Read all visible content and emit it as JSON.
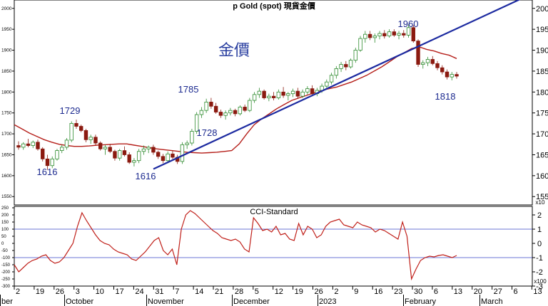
{
  "chart_data": [
    {
      "type": "candlestick",
      "title": "p Gold (spot) 現貨金價",
      "watermark": "金價",
      "right_axis_multiplier": "x10",
      "left_ticks": [
        1550,
        1600,
        1650,
        1700,
        1750,
        1800,
        1850,
        1900,
        1950,
        2000
      ],
      "right_ticks": [
        155,
        160,
        165,
        170,
        175,
        180,
        185,
        190,
        195,
        200
      ],
      "ylim": [
        1530,
        2020
      ],
      "x_ticks": [
        "2",
        "19",
        "26",
        "3",
        "10",
        "17",
        "24",
        "31",
        "7",
        "14",
        "21",
        "28",
        "5",
        "12",
        "19",
        "26",
        "2",
        "9",
        "16",
        "23",
        "30",
        "6",
        "13",
        "20",
        "27",
        "6",
        "13"
      ],
      "months": [
        "ber",
        "October",
        "November",
        "December",
        "2023",
        "February",
        "March"
      ],
      "annotations": [
        "1729",
        "1616",
        "1616",
        "1785",
        "1728",
        "1960",
        "1818"
      ],
      "series": [
        {
          "name": "candles",
          "ohlc": [
            [
              1672,
              1682,
              1662,
              1668
            ],
            [
              1668,
              1680,
              1662,
              1676
            ],
            [
              1676,
              1688,
              1668,
              1672
            ],
            [
              1672,
              1684,
              1666,
              1680
            ],
            [
              1680,
              1686,
              1660,
              1664
            ],
            [
              1664,
              1668,
              1634,
              1640
            ],
            [
              1640,
              1650,
              1614,
              1624
            ],
            [
              1624,
              1646,
              1618,
              1640
            ],
            [
              1640,
              1664,
              1636,
              1660
            ],
            [
              1660,
              1674,
              1654,
              1668
            ],
            [
              1668,
              1690,
              1662,
              1685
            ],
            [
              1685,
              1730,
              1680,
              1725
            ],
            [
              1725,
              1734,
              1712,
              1718
            ],
            [
              1718,
              1722,
              1704,
              1708
            ],
            [
              1708,
              1712,
              1680,
              1686
            ],
            [
              1686,
              1698,
              1676,
              1692
            ],
            [
              1692,
              1698,
              1672,
              1678
            ],
            [
              1678,
              1682,
              1660,
              1664
            ],
            [
              1664,
              1674,
              1650,
              1668
            ],
            [
              1668,
              1676,
              1654,
              1658
            ],
            [
              1658,
              1662,
              1636,
              1642
            ],
            [
              1642,
              1664,
              1636,
              1660
            ],
            [
              1660,
              1670,
              1646,
              1650
            ],
            [
              1650,
              1656,
              1628,
              1632
            ],
            [
              1632,
              1642,
              1622,
              1636
            ],
            [
              1636,
              1664,
              1630,
              1658
            ],
            [
              1658,
              1672,
              1650,
              1664
            ],
            [
              1664,
              1672,
              1654,
              1668
            ],
            [
              1668,
              1674,
              1650,
              1656
            ],
            [
              1656,
              1660,
              1640,
              1646
            ],
            [
              1646,
              1652,
              1630,
              1636
            ],
            [
              1636,
              1658,
              1630,
              1652
            ],
            [
              1652,
              1660,
              1640,
              1644
            ],
            [
              1644,
              1650,
              1628,
              1634
            ],
            [
              1634,
              1680,
              1628,
              1674
            ],
            [
              1674,
              1684,
              1664,
              1678
            ],
            [
              1678,
              1712,
              1672,
              1706
            ],
            [
              1706,
              1752,
              1700,
              1746
            ],
            [
              1746,
              1764,
              1738,
              1756
            ],
            [
              1756,
              1784,
              1750,
              1776
            ],
            [
              1776,
              1786,
              1760,
              1766
            ],
            [
              1766,
              1774,
              1748,
              1752
            ],
            [
              1752,
              1758,
              1738,
              1744
            ],
            [
              1744,
              1756,
              1734,
              1750
            ],
            [
              1750,
              1762,
              1744,
              1756
            ],
            [
              1756,
              1760,
              1742,
              1748
            ],
            [
              1748,
              1768,
              1744,
              1764
            ],
            [
              1764,
              1770,
              1752,
              1756
            ],
            [
              1756,
              1786,
              1752,
              1780
            ],
            [
              1780,
              1800,
              1774,
              1794
            ],
            [
              1794,
              1810,
              1786,
              1802
            ],
            [
              1802,
              1806,
              1782,
              1786
            ],
            [
              1786,
              1796,
              1778,
              1790
            ],
            [
              1790,
              1800,
              1780,
              1786
            ],
            [
              1786,
              1806,
              1782,
              1800
            ],
            [
              1800,
              1812,
              1786,
              1792
            ],
            [
              1792,
              1800,
              1780,
              1796
            ],
            [
              1796,
              1808,
              1788,
              1802
            ],
            [
              1802,
              1810,
              1784,
              1790
            ],
            [
              1790,
              1806,
              1786,
              1800
            ],
            [
              1800,
              1814,
              1794,
              1808
            ],
            [
              1808,
              1816,
              1792,
              1796
            ],
            [
              1796,
              1810,
              1790,
              1804
            ],
            [
              1804,
              1820,
              1798,
              1814
            ],
            [
              1814,
              1830,
              1810,
              1824
            ],
            [
              1824,
              1846,
              1818,
              1840
            ],
            [
              1840,
              1862,
              1832,
              1856
            ],
            [
              1856,
              1872,
              1848,
              1866
            ],
            [
              1866,
              1874,
              1852,
              1860
            ],
            [
              1860,
              1880,
              1856,
              1876
            ],
            [
              1876,
              1906,
              1870,
              1900
            ],
            [
              1900,
              1934,
              1896,
              1928
            ],
            [
              1928,
              1946,
              1918,
              1938
            ],
            [
              1938,
              1946,
              1924,
              1930
            ],
            [
              1930,
              1940,
              1918,
              1934
            ],
            [
              1934,
              1946,
              1926,
              1940
            ],
            [
              1940,
              1948,
              1928,
              1934
            ],
            [
              1934,
              1950,
              1930,
              1944
            ],
            [
              1944,
              1950,
              1932,
              1936
            ],
            [
              1936,
              1946,
              1926,
              1940
            ],
            [
              1940,
              1948,
              1930,
              1936
            ],
            [
              1936,
              1962,
              1930,
              1954
            ],
            [
              1954,
              1960,
              1918,
              1922
            ],
            [
              1922,
              1926,
              1860,
              1866
            ],
            [
              1866,
              1876,
              1856,
              1870
            ],
            [
              1870,
              1884,
              1862,
              1878
            ],
            [
              1878,
              1886,
              1864,
              1868
            ],
            [
              1868,
              1874,
              1852,
              1858
            ],
            [
              1858,
              1864,
              1842,
              1848
            ],
            [
              1848,
              1854,
              1830,
              1836
            ],
            [
              1836,
              1848,
              1828,
              1842
            ],
            [
              1842,
              1848,
              1832,
              1838
            ]
          ]
        },
        {
          "name": "moving-average",
          "values": [
            1722,
            1712,
            1702,
            1694,
            1686,
            1680,
            1675,
            1672,
            1670,
            1670,
            1671,
            1673,
            1674,
            1675,
            1676,
            1676,
            1673,
            1670,
            1667,
            1664,
            1662,
            1660,
            1658,
            1656,
            1655,
            1654,
            1655,
            1656,
            1658,
            1660,
            1676,
            1700,
            1722,
            1736,
            1748,
            1760,
            1770,
            1780,
            1786,
            1792,
            1798,
            1804,
            1808,
            1812,
            1818,
            1824,
            1832,
            1840,
            1850,
            1860,
            1872,
            1884,
            1894,
            1904,
            1908,
            1902,
            1898,
            1892,
            1888,
            1880
          ]
        },
        {
          "name": "trendline",
          "points": [
            [
              "Nov 3",
              1616
            ],
            [
              "Feb 2",
              1920
            ]
          ]
        }
      ]
    },
    {
      "type": "line",
      "title": "CCI-Standard",
      "right_axis_multiplier": "x100",
      "left_ticks": [
        -300,
        -250,
        -200,
        -150,
        -100,
        -50,
        0,
        50,
        100,
        150,
        200,
        250
      ],
      "right_ticks": [
        -3,
        -2,
        -1,
        0,
        1,
        2
      ],
      "ylim": [
        -300,
        260
      ],
      "reference_lines": [
        100,
        -100
      ],
      "series": [
        {
          "name": "cci",
          "values": [
            -150,
            -200,
            -170,
            -140,
            -120,
            -110,
            -90,
            -80,
            -120,
            -140,
            -130,
            -100,
            -50,
            0,
            120,
            215,
            160,
            110,
            60,
            20,
            0,
            -10,
            -40,
            -60,
            -70,
            -80,
            -110,
            -120,
            -90,
            -60,
            -20,
            20,
            40,
            -50,
            -80,
            -40,
            -150,
            100,
            200,
            230,
            210,
            180,
            150,
            120,
            90,
            70,
            40,
            30,
            20,
            30,
            10,
            -40,
            -60,
            180,
            140,
            90,
            100,
            80,
            120,
            60,
            70,
            30,
            20,
            140,
            60,
            120,
            100,
            40,
            60,
            120,
            150,
            160,
            170,
            130,
            120,
            110,
            150,
            130,
            120,
            110,
            80,
            100,
            90,
            70,
            50,
            30,
            150,
            50,
            -250,
            -180,
            -120,
            -100,
            -90,
            -95,
            -85,
            -80,
            -90,
            -100,
            -85
          ]
        }
      ]
    }
  ]
}
